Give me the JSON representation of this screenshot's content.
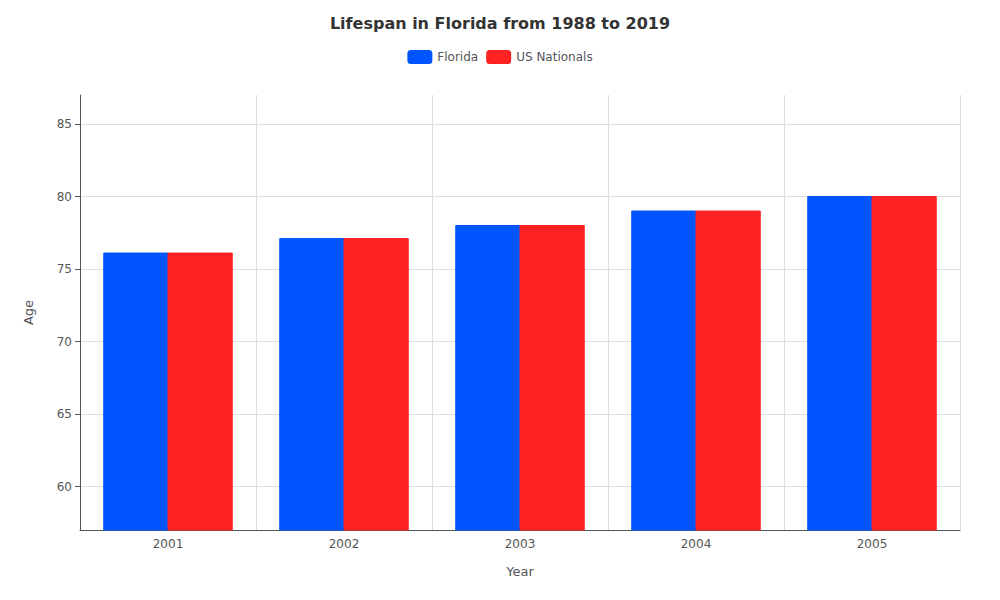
{
  "chart_data": {
    "type": "bar",
    "title": "Lifespan in Florida from 1988 to 2019",
    "categories": [
      "2001",
      "2002",
      "2003",
      "2004",
      "2005"
    ],
    "series": [
      {
        "name": "Florida",
        "color": "#0055ff",
        "values": [
          76.1,
          77.1,
          78.0,
          79.0,
          80.0
        ]
      },
      {
        "name": "US Nationals",
        "color": "#ff2222",
        "values": [
          76.1,
          77.1,
          78.0,
          79.0,
          80.0
        ]
      }
    ],
    "xlabel": "Year",
    "ylabel": "Age",
    "ylim": [
      57,
      87
    ],
    "yticks": [
      60,
      65,
      70,
      75,
      80,
      85
    ],
    "grid": true,
    "legend": "upper center"
  }
}
